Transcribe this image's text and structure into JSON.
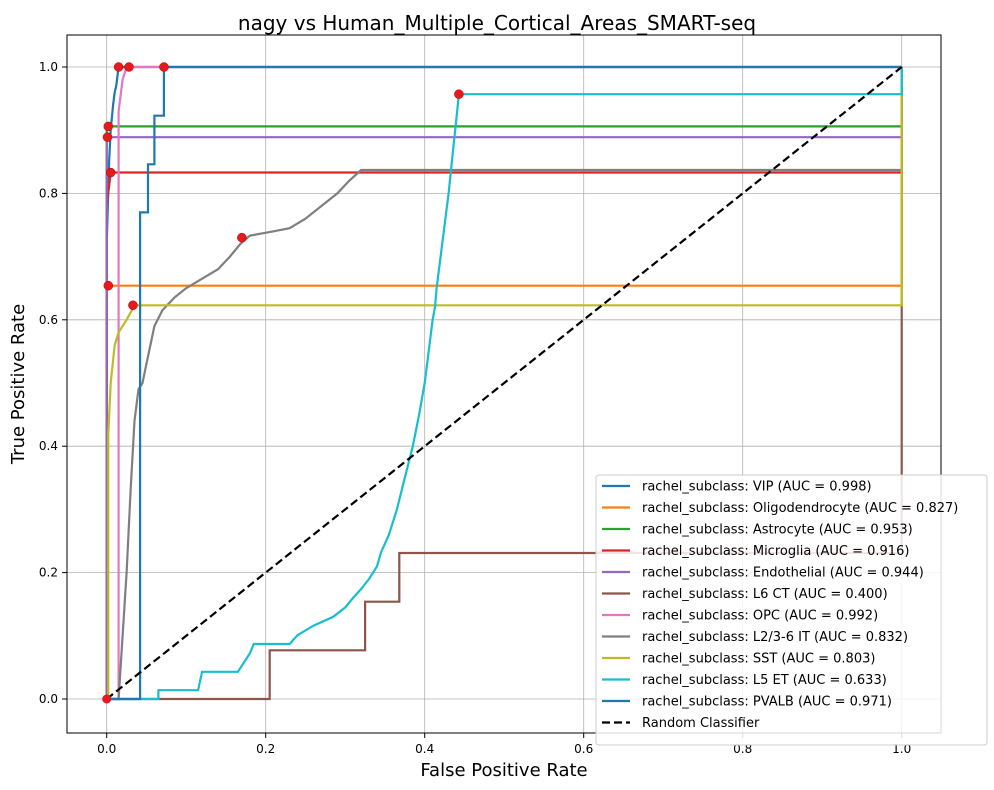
{
  "chart_data": {
    "type": "line",
    "title": "nagy vs Human_Multiple_Cortical_Areas_SMART-seq",
    "xlabel": "False Positive Rate",
    "ylabel": "True Positive Rate",
    "xlim": [
      -0.05,
      1.05
    ],
    "ylim": [
      -0.05,
      1.05
    ],
    "xticks": [
      "0.0",
      "0.2",
      "0.4",
      "0.6",
      "0.8",
      "1.0"
    ],
    "yticks": [
      "0.0",
      "0.2",
      "0.4",
      "0.6",
      "0.8",
      "1.0"
    ],
    "grid": true,
    "legend_position": "lower-right",
    "series": [
      {
        "name": "rachel_subclass: VIP (AUC = 0.998)",
        "color": "#1f77b4",
        "points": [
          [
            0,
            0
          ],
          [
            0,
            0.72
          ],
          [
            0.003,
            0.85
          ],
          [
            0.005,
            0.9
          ],
          [
            0.008,
            0.94
          ],
          [
            0.01,
            0.96
          ],
          [
            0.012,
            0.97
          ],
          [
            0.015,
            1.0
          ],
          [
            0.03,
            1.0
          ],
          [
            1,
            1
          ]
        ],
        "marker": [
          0.015,
          1.0
        ]
      },
      {
        "name": "rachel_subclass: Oligodendrocyte (AUC = 0.827)",
        "color": "#ff7f0e",
        "points": [
          [
            0,
            0
          ],
          [
            0,
            0.654
          ],
          [
            1,
            0.654
          ],
          [
            1,
            1
          ]
        ],
        "marker": [
          0.002,
          0.654
        ]
      },
      {
        "name": "rachel_subclass: Astrocyte (AUC = 0.953)",
        "color": "#2ca02c",
        "points": [
          [
            0,
            0
          ],
          [
            0,
            0.906
          ],
          [
            1,
            0.906
          ],
          [
            1,
            1
          ]
        ],
        "marker": [
          0.002,
          0.906
        ]
      },
      {
        "name": "rachel_subclass: Microglia (AUC = 0.916)",
        "color": "#d62728",
        "points": [
          [
            0,
            0
          ],
          [
            0,
            0.78
          ],
          [
            0.005,
            0.833
          ],
          [
            1,
            0.833
          ],
          [
            1,
            1
          ]
        ],
        "marker": [
          0.005,
          0.833
        ]
      },
      {
        "name": "rachel_subclass: Endothelial (AUC = 0.944)",
        "color": "#9467bd",
        "points": [
          [
            0,
            0
          ],
          [
            0,
            0.889
          ],
          [
            1,
            0.889
          ],
          [
            1,
            1
          ]
        ],
        "marker": [
          0.001,
          0.889
        ]
      },
      {
        "name": "rachel_subclass: L6 CT (AUC = 0.400)",
        "color": "#8c564b",
        "points": [
          [
            0,
            0
          ],
          [
            0.205,
            0
          ],
          [
            0.205,
            0.077
          ],
          [
            0.325,
            0.077
          ],
          [
            0.325,
            0.154
          ],
          [
            0.368,
            0.154
          ],
          [
            0.368,
            0.231
          ],
          [
            1,
            0.231
          ],
          [
            1,
            0.62
          ],
          [
            1,
            1
          ]
        ],
        "marker": null
      },
      {
        "name": "rachel_subclass: OPC (AUC = 0.992)",
        "color": "#e377c2",
        "points": [
          [
            0,
            0
          ],
          [
            0.015,
            0
          ],
          [
            0.015,
            0.93
          ],
          [
            0.018,
            0.96
          ],
          [
            0.02,
            0.98
          ],
          [
            0.025,
            1.0
          ],
          [
            1,
            1
          ]
        ],
        "marker": [
          0.028,
          1.0
        ]
      },
      {
        "name": "rachel_subclass: L2/3-6 IT (AUC = 0.832)",
        "color": "#7f7f7f",
        "points": [
          [
            0,
            0
          ],
          [
            0.015,
            0
          ],
          [
            0.02,
            0.1
          ],
          [
            0.025,
            0.2
          ],
          [
            0.03,
            0.33
          ],
          [
            0.035,
            0.44
          ],
          [
            0.04,
            0.49
          ],
          [
            0.045,
            0.5
          ],
          [
            0.05,
            0.53
          ],
          [
            0.055,
            0.56
          ],
          [
            0.06,
            0.59
          ],
          [
            0.07,
            0.615
          ],
          [
            0.085,
            0.635
          ],
          [
            0.1,
            0.65
          ],
          [
            0.12,
            0.665
          ],
          [
            0.14,
            0.68
          ],
          [
            0.155,
            0.7
          ],
          [
            0.168,
            0.72
          ],
          [
            0.18,
            0.733
          ],
          [
            0.21,
            0.74
          ],
          [
            0.23,
            0.745
          ],
          [
            0.25,
            0.76
          ],
          [
            0.27,
            0.78
          ],
          [
            0.29,
            0.8
          ],
          [
            0.305,
            0.82
          ],
          [
            0.32,
            0.837
          ],
          [
            1,
            0.837
          ],
          [
            1,
            1
          ]
        ],
        "marker": [
          0.17,
          0.73
        ]
      },
      {
        "name": "rachel_subclass: SST (AUC = 0.803)",
        "color": "#bcbd22",
        "points": [
          [
            0,
            0
          ],
          [
            0.002,
            0
          ],
          [
            0.002,
            0.42
          ],
          [
            0.005,
            0.5
          ],
          [
            0.01,
            0.56
          ],
          [
            0.015,
            0.58
          ],
          [
            0.025,
            0.6
          ],
          [
            0.035,
            0.623
          ],
          [
            1,
            0.623
          ],
          [
            1,
            1
          ]
        ],
        "marker": [
          0.033,
          0.623
        ]
      },
      {
        "name": "rachel_subclass: L5 ET (AUC = 0.633)",
        "color": "#17becf",
        "points": [
          [
            0,
            0
          ],
          [
            0.065,
            0
          ],
          [
            0.065,
            0.014
          ],
          [
            0.115,
            0.014
          ],
          [
            0.12,
            0.043
          ],
          [
            0.165,
            0.043
          ],
          [
            0.18,
            0.072
          ],
          [
            0.185,
            0.087
          ],
          [
            0.23,
            0.087
          ],
          [
            0.24,
            0.101
          ],
          [
            0.26,
            0.116
          ],
          [
            0.285,
            0.13
          ],
          [
            0.3,
            0.145
          ],
          [
            0.31,
            0.16
          ],
          [
            0.32,
            0.174
          ],
          [
            0.33,
            0.19
          ],
          [
            0.34,
            0.21
          ],
          [
            0.345,
            0.232
          ],
          [
            0.355,
            0.26
          ],
          [
            0.365,
            0.3
          ],
          [
            0.375,
            0.35
          ],
          [
            0.385,
            0.4
          ],
          [
            0.393,
            0.45
          ],
          [
            0.4,
            0.5
          ],
          [
            0.405,
            0.55
          ],
          [
            0.41,
            0.6
          ],
          [
            0.413,
            0.62
          ],
          [
            0.415,
            0.65
          ],
          [
            0.42,
            0.7
          ],
          [
            0.425,
            0.75
          ],
          [
            0.43,
            0.8
          ],
          [
            0.435,
            0.86
          ],
          [
            0.44,
            0.92
          ],
          [
            0.443,
            0.957
          ],
          [
            1,
            0.957
          ],
          [
            1,
            1
          ]
        ],
        "marker": [
          0.443,
          0.957
        ]
      },
      {
        "name": "rachel_subclass: PVALB (AUC = 0.971)",
        "color": "#1f77b4",
        "points": [
          [
            0,
            0
          ],
          [
            0.042,
            0
          ],
          [
            0.042,
            0.77
          ],
          [
            0.052,
            0.77
          ],
          [
            0.052,
            0.846
          ],
          [
            0.06,
            0.846
          ],
          [
            0.06,
            0.923
          ],
          [
            0.072,
            0.923
          ],
          [
            0.072,
            1.0
          ],
          [
            1,
            1
          ]
        ],
        "marker": [
          0.072,
          1.0
        ]
      },
      {
        "name": "Random Classifier",
        "color": "#000000",
        "dashed": true,
        "points": [
          [
            0,
            0
          ],
          [
            1,
            1
          ]
        ],
        "marker": null
      }
    ],
    "origin_marker": [
      0,
      0
    ]
  }
}
